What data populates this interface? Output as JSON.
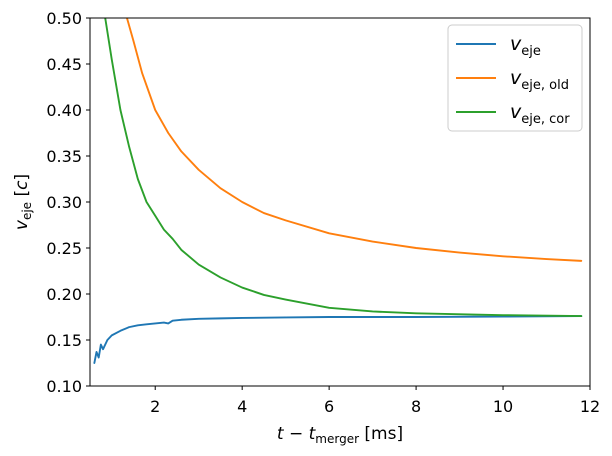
{
  "chart_data": {
    "type": "line",
    "title": "",
    "xlabel": {
      "base": "t",
      "minus": "−",
      "sym": "t",
      "sub": "merger",
      "unit": "[ms]"
    },
    "ylabel": {
      "base": "v",
      "sub": "eje",
      "unit": "c"
    },
    "xlim": [
      0.5,
      12
    ],
    "ylim": [
      0.1,
      0.5
    ],
    "xticks": [
      2,
      4,
      6,
      8,
      10,
      12
    ],
    "yticks": [
      0.1,
      0.15,
      0.2,
      0.25,
      0.3,
      0.35,
      0.4,
      0.45,
      0.5
    ],
    "xtick_labels": [
      "2",
      "4",
      "6",
      "8",
      "10",
      "12"
    ],
    "ytick_labels": [
      "0.10",
      "0.15",
      "0.20",
      "0.25",
      "0.30",
      "0.35",
      "0.40",
      "0.45",
      "0.50"
    ],
    "legend_position": "top-right",
    "series": [
      {
        "name": "v_eje",
        "label_base": "v",
        "label_sub": "eje",
        "color": "#1f77b4",
        "x": [
          0.6,
          0.65,
          0.7,
          0.75,
          0.8,
          0.9,
          1.0,
          1.2,
          1.4,
          1.6,
          1.8,
          2.0,
          2.2,
          2.3,
          2.4,
          2.6,
          3.0,
          3.5,
          4.0,
          5.0,
          6.0,
          8.0,
          10.0,
          11.8
        ],
        "y": [
          0.125,
          0.137,
          0.131,
          0.145,
          0.14,
          0.15,
          0.155,
          0.16,
          0.164,
          0.166,
          0.167,
          0.168,
          0.169,
          0.168,
          0.171,
          0.172,
          0.173,
          0.1735,
          0.174,
          0.1745,
          0.175,
          0.175,
          0.1755,
          0.176
        ]
      },
      {
        "name": "v_eje,old",
        "label_base": "v",
        "label_sub": "eje, old",
        "color": "#ff7f0e",
        "x": [
          1.35,
          1.5,
          1.7,
          2.0,
          2.3,
          2.6,
          3.0,
          3.5,
          4.0,
          4.5,
          5.0,
          6.0,
          7.0,
          8.0,
          9.0,
          10.0,
          11.0,
          11.8
        ],
        "y": [
          0.5,
          0.475,
          0.44,
          0.4,
          0.375,
          0.355,
          0.335,
          0.315,
          0.3,
          0.288,
          0.28,
          0.266,
          0.257,
          0.25,
          0.245,
          0.241,
          0.238,
          0.236
        ]
      },
      {
        "name": "v_eje,cor",
        "label_base": "v",
        "label_sub": "eje, cor",
        "color": "#2ca02c",
        "x": [
          0.85,
          1.0,
          1.2,
          1.4,
          1.6,
          1.8,
          2.0,
          2.2,
          2.4,
          2.6,
          3.0,
          3.5,
          4.0,
          4.5,
          5.0,
          6.0,
          7.0,
          8.0,
          10.0,
          11.8
        ],
        "y": [
          0.5,
          0.455,
          0.4,
          0.36,
          0.325,
          0.3,
          0.285,
          0.27,
          0.26,
          0.248,
          0.232,
          0.218,
          0.207,
          0.199,
          0.194,
          0.185,
          0.181,
          0.179,
          0.177,
          0.176
        ]
      }
    ]
  }
}
